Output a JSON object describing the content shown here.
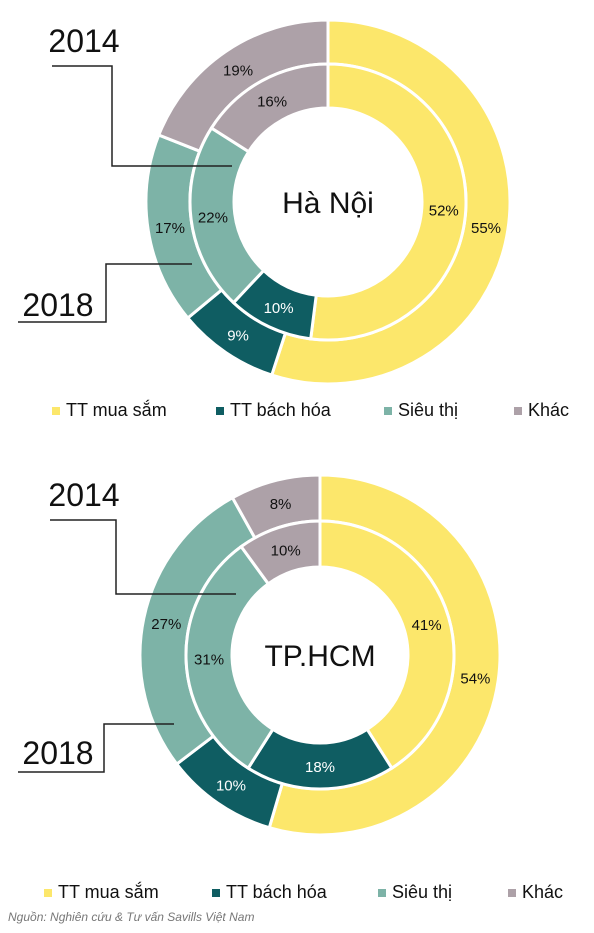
{
  "colors": {
    "shopping": "#FCE76B",
    "department": "#0F5D62",
    "supermarket": "#7DB3A7",
    "other": "#ADA1A8"
  },
  "legend": [
    {
      "label": "TT mua sắm",
      "color": "#FCE76B"
    },
    {
      "label": "TT bách hóa",
      "color": "#0F5D62"
    },
    {
      "label": "Siêu thị",
      "color": "#7DB3A7"
    },
    {
      "label": "Khác",
      "color": "#ADA1A8"
    }
  ],
  "chart_data": [
    {
      "type": "pie",
      "title": "Hà Nội",
      "categories": [
        "TT mua sắm",
        "TT bách hóa",
        "Siêu thị",
        "Khác"
      ],
      "series": [
        {
          "name": "2018",
          "values": [
            55,
            9,
            17,
            19
          ],
          "labels": [
            "55%",
            "9%",
            "17%",
            "19%"
          ]
        },
        {
          "name": "2014",
          "values": [
            52,
            10,
            22,
            16
          ],
          "labels": [
            "52%",
            "10%",
            "22%",
            "16%"
          ]
        }
      ]
    },
    {
      "type": "pie",
      "title": "TP.HCM",
      "categories": [
        "TT mua sắm",
        "TT bách hóa",
        "Siêu thị",
        "Khác"
      ],
      "series": [
        {
          "name": "2018",
          "values": [
            54,
            10,
            27,
            8
          ],
          "labels": [
            "54%",
            "10%",
            "27%",
            "8%"
          ]
        },
        {
          "name": "2014",
          "values": [
            41,
            18,
            31,
            10
          ],
          "labels": [
            "41%",
            "18%",
            "31%",
            "10%"
          ]
        }
      ]
    }
  ],
  "source": "Nguồn: Nghiên cứu & Tư vấn Savills Việt Nam"
}
